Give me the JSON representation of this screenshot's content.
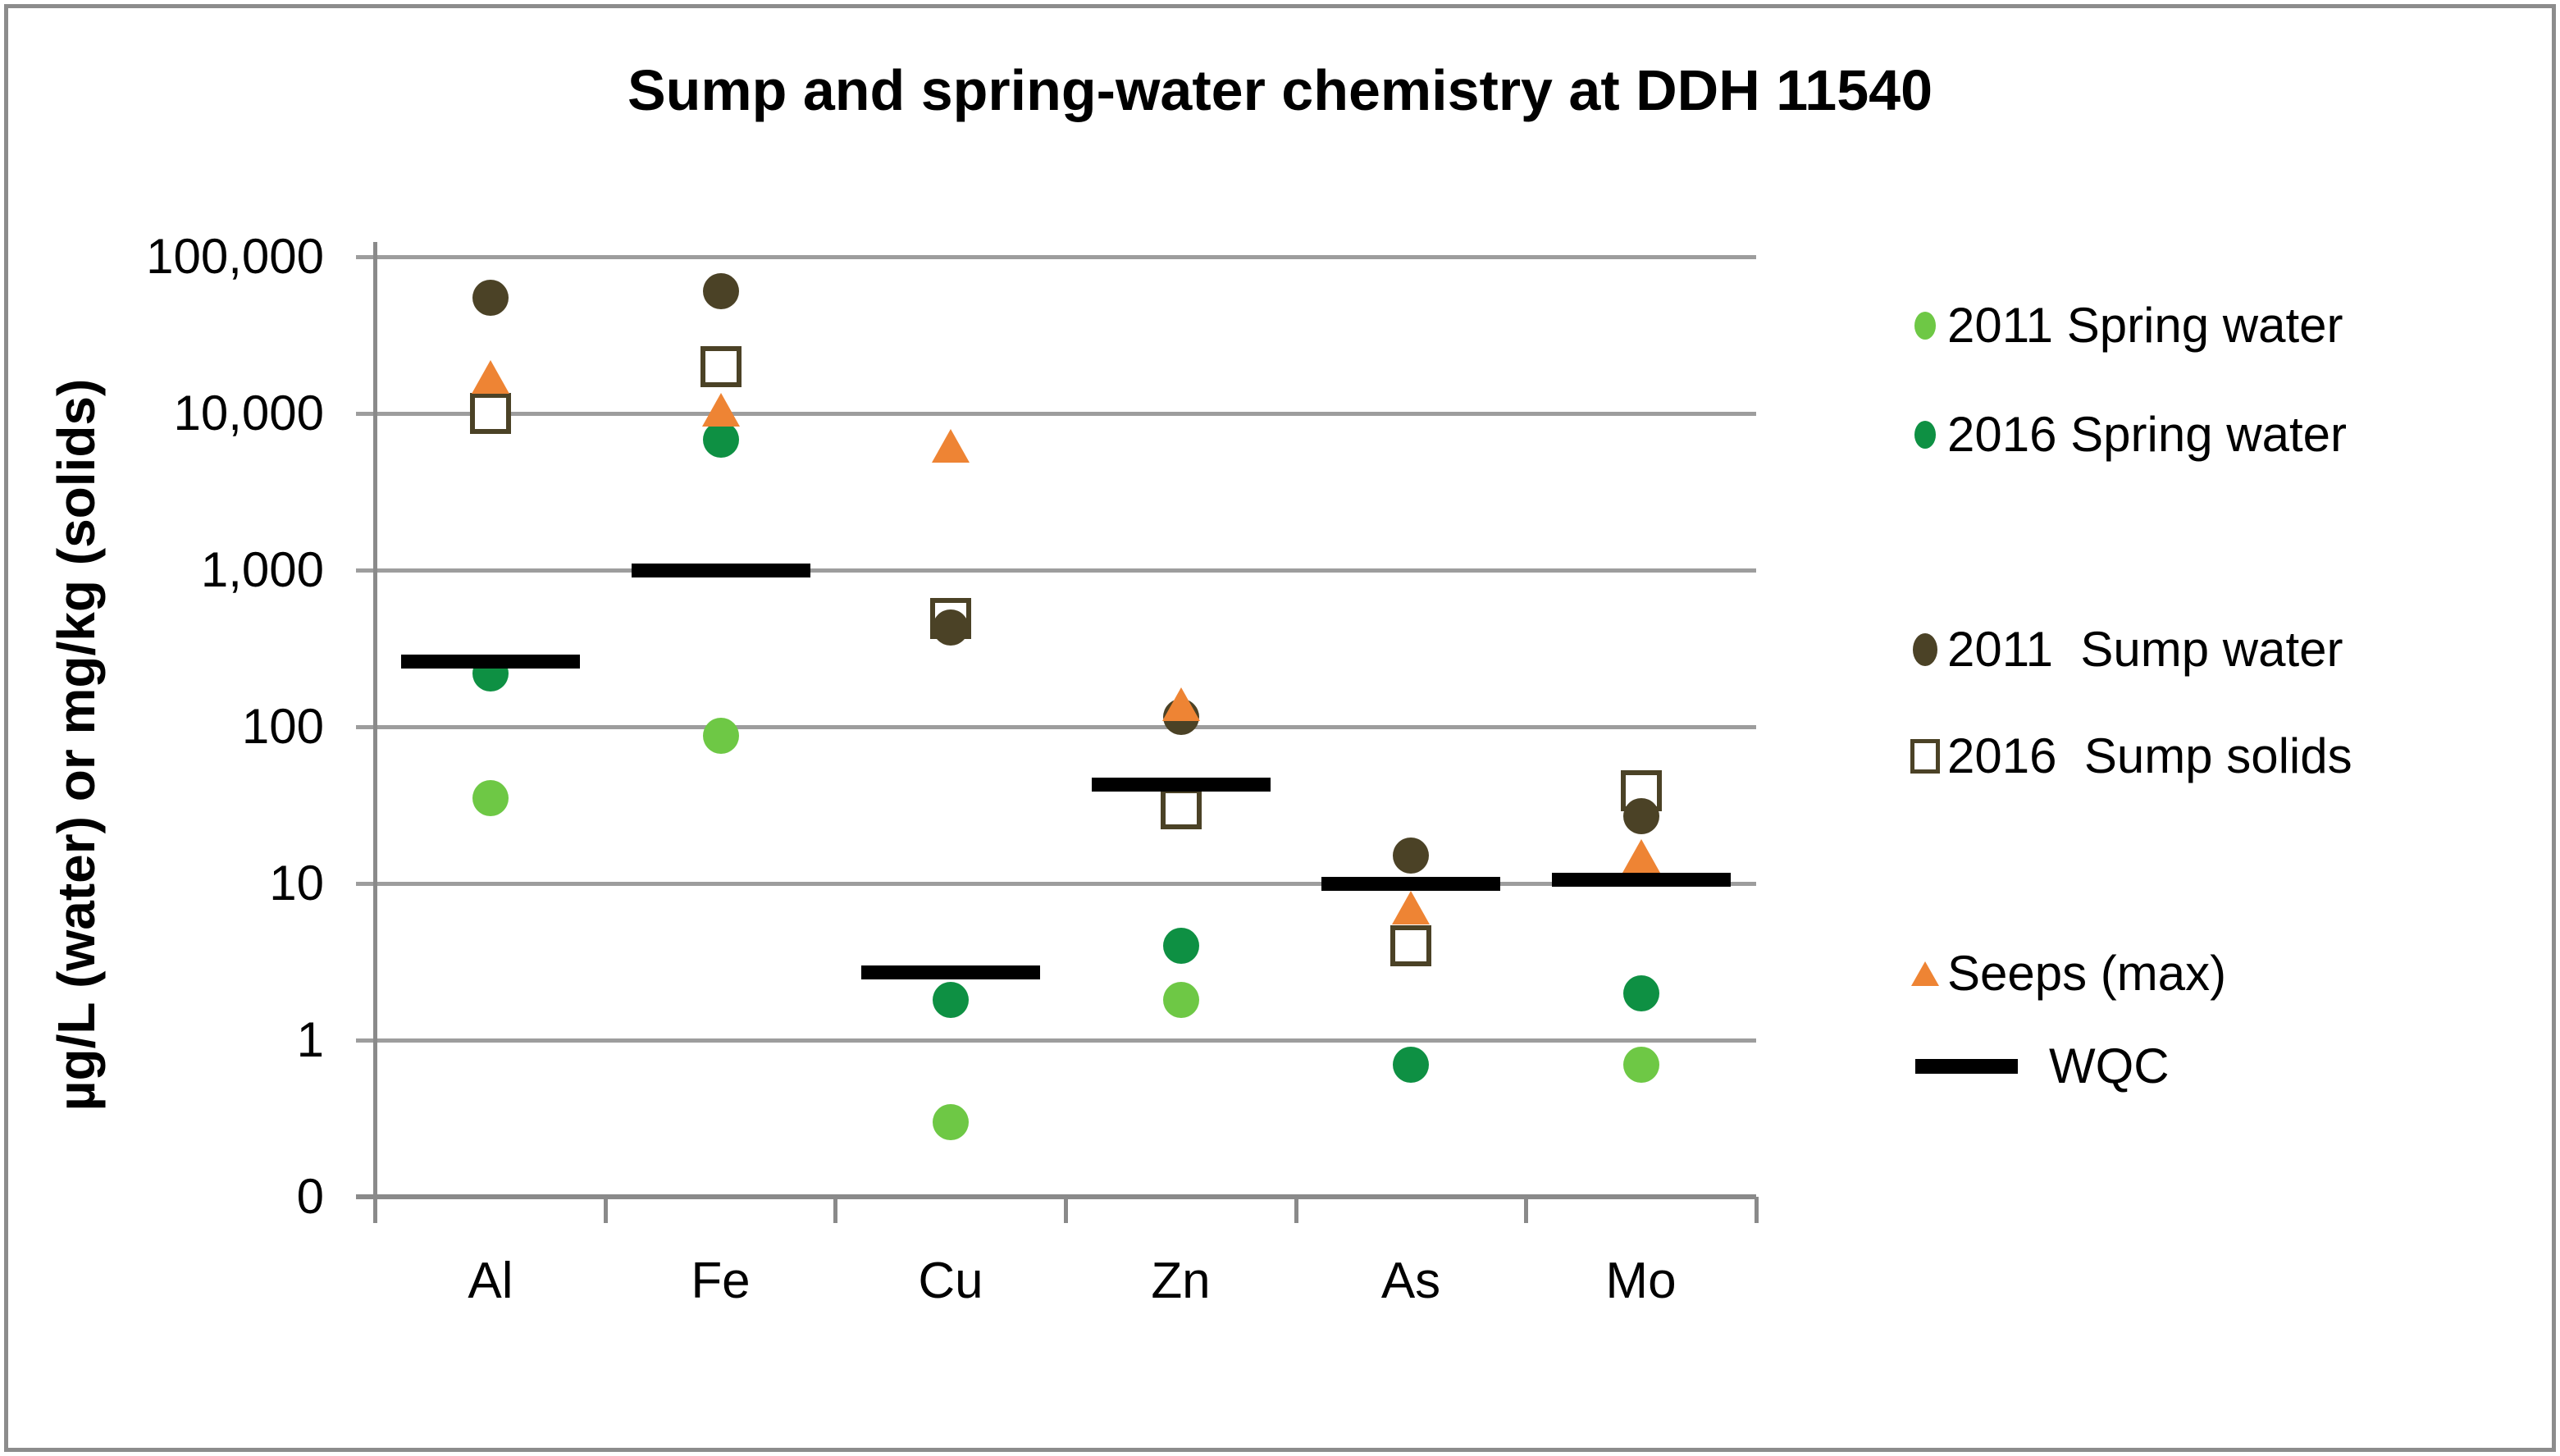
{
  "title": "Sump and spring-water chemistry at DDH 11540",
  "colors": {
    "spring_2011": "#6EC845",
    "spring_2016": "#0E9043",
    "sump_2011": "#4B4226",
    "sump_solids_2016": "#4B4226",
    "seeps": "#EE8434",
    "wqc": "#000000",
    "gridline": "#9D9D9D",
    "axis": "#8A8A8A",
    "frame_border": "#8C8C8C"
  },
  "chart_data": {
    "type": "scatter",
    "title": "Sump and spring-water chemistry at DDH 11540",
    "xlabel": "",
    "ylabel": "µg/L (water) or mg/kg (solids)",
    "y_scale": "log",
    "y_tick_labels": [
      "100,000",
      "10,000",
      "1,000",
      "100",
      "10",
      "1",
      "0"
    ],
    "ylim": [
      0.2,
      100000
    ],
    "grid": true,
    "legend_position": "right",
    "categories": [
      "Al",
      "Fe",
      "Cu",
      "Zn",
      "As",
      "Mo"
    ],
    "series": [
      {
        "name": "2011 Spring water",
        "marker": "circle",
        "color": "#6EC845",
        "values": [
          35,
          88,
          0.3,
          1.8,
          null,
          0.7
        ]
      },
      {
        "name": "2016 Spring water",
        "marker": "circle",
        "color": "#0E9043",
        "values": [
          220,
          6800,
          1.8,
          4,
          0.7,
          2
        ]
      },
      {
        "name": "2011  Sump water",
        "marker": "circle",
        "color": "#4B4226",
        "values": [
          55000,
          60000,
          430,
          115,
          15,
          27
        ]
      },
      {
        "name": "2016  Sump solids",
        "marker": "square-open",
        "color": "#4B4226",
        "values": [
          10000,
          20000,
          490,
          30,
          4,
          39
        ]
      },
      {
        "name": "Seeps (max)",
        "marker": "triangle",
        "color": "#EE8434",
        "values": [
          17000,
          10500,
          6200,
          140,
          7,
          15
        ]
      },
      {
        "name": "WQC",
        "marker": "bar",
        "color": "#000000",
        "values": [
          260,
          1000,
          2.7,
          43,
          10,
          10.5
        ]
      }
    ]
  }
}
